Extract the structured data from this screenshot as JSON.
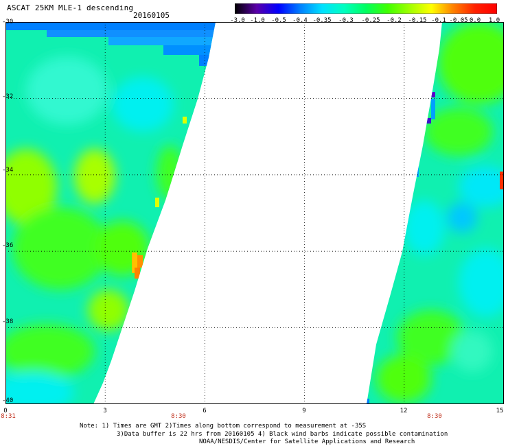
{
  "header": {
    "title": "ASCAT 25KM MLE-1 descending",
    "date": "20160105"
  },
  "colorbar": {
    "labels": [
      "-3.0",
      "-1.0",
      "-0.5",
      "-0.4",
      "-0.35",
      "-0.3",
      "-0.25",
      "-0.2",
      "-0.15",
      "-0.1",
      "-0.05",
      "0.0",
      "1.0"
    ],
    "colors": [
      "#000000",
      "#5a00a8",
      "#0000ff",
      "#0080ff",
      "#00e0ff",
      "#00ffc0",
      "#00ff60",
      "#40ff00",
      "#a0ff00",
      "#ffff00",
      "#ff8000",
      "#ff2000",
      "#ff0000"
    ]
  },
  "map": {
    "y_axis_labels": [
      "-30",
      "-32",
      "-34",
      "-36",
      "-38",
      "-40"
    ],
    "x_axis_labels": [
      "0",
      "3",
      "6",
      "9",
      "12",
      "15"
    ],
    "pass_times": [
      "8:31",
      "8:30",
      "8:30"
    ],
    "lat_range": [
      -40,
      -30
    ],
    "lon_range": [
      0,
      15
    ],
    "swath_colors": {
      "base": "#10f0b0",
      "green": "#40ff20",
      "lime": "#90ff00",
      "cyan": "#00f0f0",
      "blue": "#0080ff",
      "deep_blue": "#2040ff",
      "purple": "#5a00c8",
      "orange": "#ff9000",
      "yellow": "#e0ff00"
    }
  },
  "footer": {
    "note1": "Note: 1) Times are GMT 2)Times along bottom correspond to measurement at -35S",
    "note2": "3)Data buffer is 22 hrs from 20160105 4) Black wind barbs indicate possible contamination",
    "note3": "NOAA/NESDIS/Center for Satellite Applications and Research"
  }
}
